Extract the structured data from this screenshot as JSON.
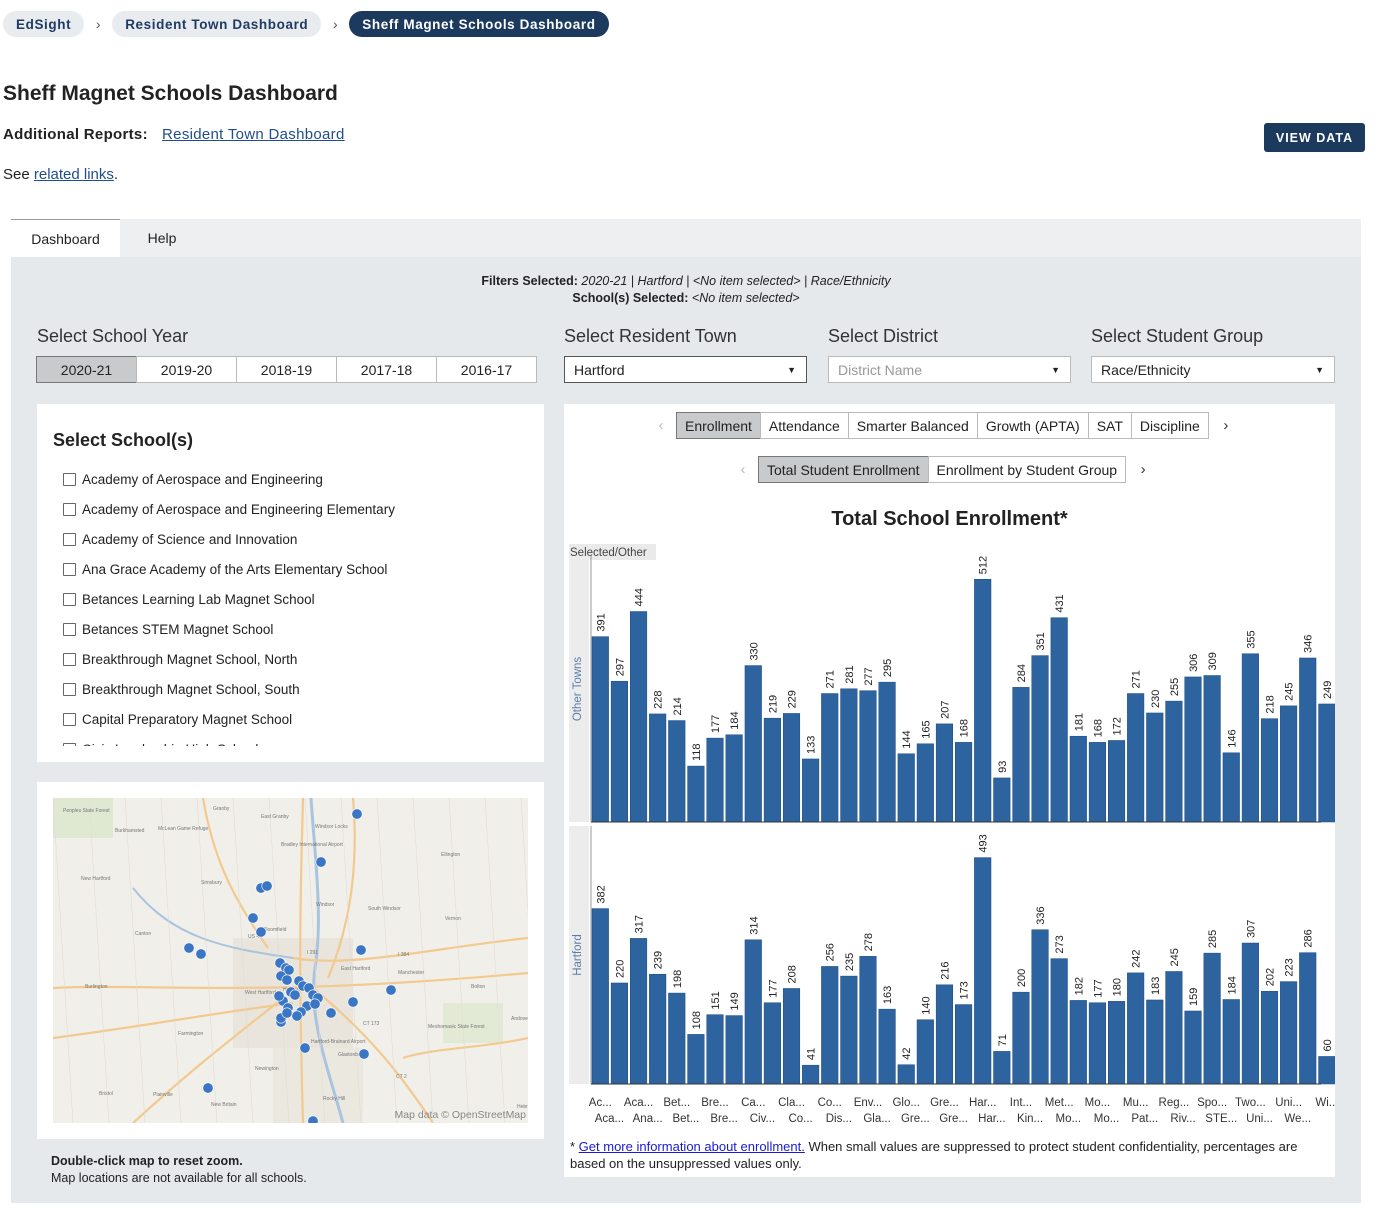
{
  "breadcrumb": {
    "items": [
      "EdSight",
      "Resident Town Dashboard",
      "Sheff Magnet Schools Dashboard"
    ]
  },
  "page_title": "Sheff Magnet Schools Dashboard",
  "reports": {
    "label": "Additional Reports:",
    "link": "Resident Town Dashboard"
  },
  "see": {
    "prefix": "See ",
    "link": "related links",
    "suffix": "."
  },
  "view_data": "VIEW DATA",
  "tabs": {
    "dashboard": "Dashboard",
    "help": "Help"
  },
  "filters": {
    "line1_label": "Filters Selected:",
    "line1_value": "2020-21 | Hartford | <No item selected> | Race/Ethnicity",
    "line2_label": "School(s) Selected:",
    "line2_value": "<No item selected>"
  },
  "school_year": {
    "label": "Select School Year",
    "options": [
      "2020-21",
      "2019-20",
      "2018-19",
      "2017-18",
      "2016-17"
    ],
    "selected": "2020-21"
  },
  "resident_town": {
    "label": "Select Resident Town",
    "value": "Hartford"
  },
  "district": {
    "label": "Select District",
    "placeholder": "District Name"
  },
  "student_group": {
    "label": "Select Student Group",
    "value": "Race/Ethnicity"
  },
  "schools": {
    "title": "Select School(s)",
    "items": [
      "Academy of Aerospace and Engineering",
      "Academy of Aerospace and Engineering Elementary",
      "Academy of Science and Innovation",
      "Ana Grace Academy of the Arts Elementary School",
      "Betances Learning Lab Magnet School",
      "Betances STEM Magnet School",
      "Breakthrough Magnet School, North",
      "Breakthrough Magnet School, South",
      "Capital Preparatory Magnet School",
      "Civic Leadership High School"
    ]
  },
  "map": {
    "credit": "Map data © OpenStreetMap",
    "note_bold": "Double-click map to reset zoom.",
    "note": "Map locations are not available for all schools.",
    "places": [
      "Granby",
      "East Granby",
      "Windsor Locks",
      "Bradley International Airport",
      "Burkhamsted",
      "Peoples State Forest",
      "McLean Game Refuge",
      "New Hartford",
      "Simsbury",
      "Ellington",
      "Windsor",
      "South Windsor",
      "Vernon",
      "Canton",
      "Bloomfield",
      "East Hartford",
      "Manchester",
      "Burlington",
      "West Hartford",
      "Hartford",
      "Bolton",
      "Farmington",
      "Hartford-Brainard Airport",
      "Glastonbury",
      "Andover",
      "Newington",
      "Bristol",
      "Plainville",
      "New Britain",
      "Rocky Hill",
      "Meshomasic State Forest",
      "I 291",
      "I 384",
      "CT 2",
      "US 44",
      "CT 173",
      "Hebron"
    ]
  },
  "metric_tabs": {
    "items": [
      "Enrollment",
      "Attendance",
      "Smarter Balanced",
      "Growth (APTA)",
      "SAT",
      "Discipline"
    ],
    "active": "Enrollment"
  },
  "sub_tabs": {
    "items": [
      "Total Student Enrollment",
      "Enrollment by Student Group"
    ],
    "active": "Total Student Enrollment"
  },
  "chart_data": {
    "type": "bar",
    "title": "Total School Enrollment*",
    "legend_label": "Selected/Other",
    "panels": [
      "Other Towns",
      "Hartford"
    ],
    "top_labels": [
      "Ac...",
      "",
      "Bet...",
      "Bre...",
      "Ca...",
      "Cla...",
      "Co...",
      "Env...",
      "Glo...",
      "Gre...",
      "Har...",
      "Int...",
      "Met...",
      "Mo...",
      "Mu...",
      "Reg...",
      "Spo...",
      "Two...",
      "Uni...",
      "Wi..."
    ],
    "bottom_labels": [
      "Aca...",
      "Ana...",
      "Bet...",
      "Bre...",
      "Civ...",
      "Co...",
      "Dis...",
      "Gla...",
      "Gre...",
      "Gre...",
      "Har...",
      "Kin...",
      "Mo...",
      "Mo...",
      "Pat...",
      "Riv...",
      "STE...",
      "Uni...",
      "We..."
    ],
    "top_label_extra": "Aca...",
    "series": [
      {
        "name": "Other Towns",
        "values": [
          391,
          297,
          444,
          228,
          214,
          118,
          177,
          184,
          330,
          219,
          229,
          133,
          271,
          281,
          277,
          295,
          144,
          165,
          207,
          168,
          512,
          93,
          284,
          351,
          431,
          181,
          168,
          172,
          271,
          230,
          255,
          306,
          309,
          146,
          355,
          218,
          245,
          346,
          249
        ]
      },
      {
        "name": "Hartford",
        "values": [
          382,
          220,
          317,
          239,
          198,
          108,
          151,
          149,
          314,
          177,
          208,
          41,
          256,
          235,
          278,
          163,
          42,
          140,
          216,
          173,
          493,
          71,
          200,
          336,
          273,
          182,
          177,
          180,
          242,
          183,
          245,
          159,
          285,
          184,
          307,
          202,
          223,
          286,
          60
        ]
      }
    ],
    "ylim": [
      0,
      540
    ],
    "bar_color": "#2d64a0"
  },
  "footnote": {
    "marker": "* ",
    "link": "Get more information about enrollment.",
    "text": " When small values are suppressed to protect student confidentiality, percentages are based on the unsuppressed values only."
  }
}
